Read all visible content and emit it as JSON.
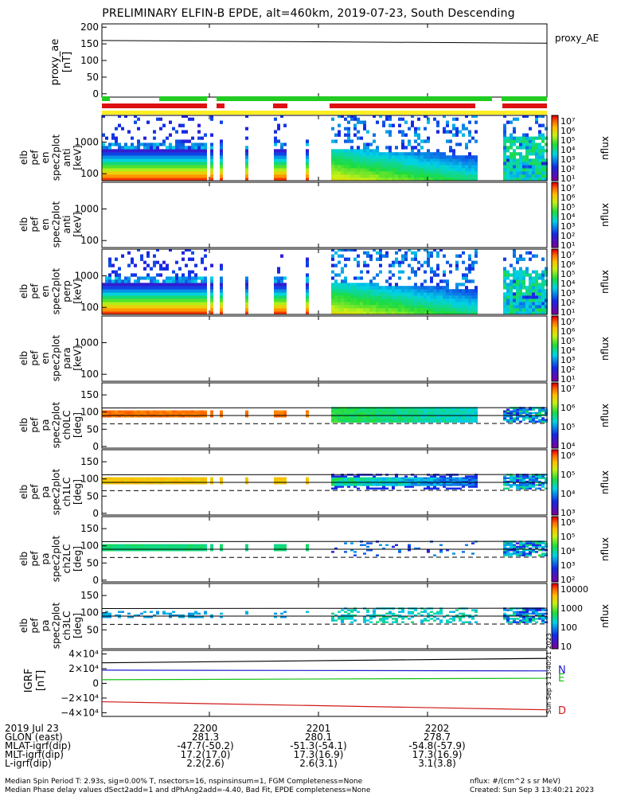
{
  "chart_data": {
    "type": "heatmap",
    "title": "PRELIMINARY ELFIN-B EPDE, alt=460km, 2019-07-23, South Descending",
    "x_tick_labels": [
      "2200",
      "2201",
      "2202"
    ],
    "panels": [
      {
        "id": "proxy_ae",
        "ylabel": [
          "proxy_ae",
          "[nT]"
        ],
        "yticks": [
          "200",
          "150",
          "100",
          "50",
          "0"
        ],
        "ylim": [
          -10,
          210
        ],
        "legend": "proxy_AE",
        "line_start": 160,
        "line_end": 152
      },
      {
        "id": "pef_en_spec2plot_anti",
        "ylabel": [
          "elb",
          "pef",
          "en",
          "spec2plot",
          "anti",
          "[keV]"
        ],
        "yticks": [
          "1000",
          "100"
        ],
        "colorbar": "nflux"
      },
      {
        "id": "pef_en_spec2plot_anti_2",
        "ylabel": [
          "elb",
          "pef",
          "en",
          "spec2plot",
          "anti",
          "[keV]"
        ],
        "yticks": [
          "1000",
          "100"
        ],
        "colorbar": "nflux"
      },
      {
        "id": "pef_en_spec2plot_perp",
        "ylabel": [
          "elb",
          "pef",
          "en",
          "spec2plot",
          "perp",
          "[keV]"
        ],
        "yticks": [
          "1000",
          "100"
        ],
        "colorbar": "nflux"
      },
      {
        "id": "pef_en_spec2plot_para",
        "ylabel": [
          "elb",
          "pef",
          "en",
          "spec2plot",
          "para",
          "[keV]"
        ],
        "yticks": [
          "1000",
          "100"
        ],
        "colorbar": "nflux"
      },
      {
        "id": "pef_pa_spec2plot_ch0LC",
        "ylabel": [
          "elb",
          "pef",
          "pa",
          "spec2plot",
          "ch0LC",
          "[deg]"
        ],
        "yticks": [
          "150",
          "100",
          "50",
          "0"
        ],
        "colorbar": "nflux"
      },
      {
        "id": "pef_pa_spec2plot_ch1LC",
        "ylabel": [
          "elb",
          "pef",
          "pa",
          "spec2plot",
          "ch1LC",
          "[deg]"
        ],
        "yticks": [
          "150",
          "100",
          "50",
          "0"
        ],
        "colorbar": "nflux"
      },
      {
        "id": "pef_pa_spec2plot_ch2LC",
        "ylabel": [
          "elb",
          "pef",
          "pa",
          "spec2plot",
          "ch2LC",
          "[deg]"
        ],
        "yticks": [
          "150",
          "100",
          "50",
          "0"
        ],
        "colorbar": "nflux"
      },
      {
        "id": "pef_pa_spec2plot_ch3LC",
        "ylabel": [
          "elb",
          "pef",
          "pa",
          "spec2plot",
          "ch3LC",
          "[deg]"
        ],
        "yticks": [
          "150",
          "100",
          "50"
        ],
        "colorbar": "nflux"
      },
      {
        "id": "igrf",
        "ylabel": [
          "IGRF",
          "[nT]"
        ],
        "yticks": [
          "4×10⁴",
          "2×10⁴",
          "0",
          "−2×10⁴",
          "−4×10⁴"
        ],
        "ylim": [
          -45000,
          45000
        ],
        "series": [
          {
            "name": "",
            "color": "#000000",
            "start": 28000,
            "end": 34000
          },
          {
            "name": "N",
            "color": "#1a1acc",
            "start": 18000,
            "end": 17000
          },
          {
            "name": "E",
            "color": "#10c010",
            "start": 5000,
            "end": 7000
          },
          {
            "name": "D",
            "color": "#d01818",
            "start": -25000,
            "end": -36000
          }
        ]
      }
    ],
    "colorbars": [
      {
        "labels": [
          "10⁷",
          "10⁶",
          "10⁵",
          "10⁴",
          "10³",
          "10²",
          "10¹"
        ],
        "unit": "nflux"
      },
      {
        "labels": [
          "10⁷",
          "10⁶",
          "10⁵",
          "10⁴",
          "10³",
          "10²",
          "10¹"
        ],
        "unit": "nflux"
      },
      {
        "labels": [
          "10⁷",
          "10⁶",
          "10⁵",
          "10⁴",
          "10³",
          "10²",
          "10¹"
        ],
        "unit": "nflux"
      },
      {
        "labels": [
          "10⁷",
          "10⁶",
          "10⁵",
          "10⁴",
          "10³",
          "10²",
          "10¹"
        ],
        "unit": "nflux"
      },
      {
        "labels": [
          "10⁷",
          "10⁶",
          "10⁵",
          "10⁴"
        ],
        "unit": "nflux"
      },
      {
        "labels": [
          "10⁶",
          "10⁵",
          "10⁴",
          "10³"
        ],
        "unit": "nflux"
      },
      {
        "labels": [
          "10⁶",
          "10⁵",
          "10⁴",
          "10³",
          "10²"
        ],
        "unit": "nflux"
      },
      {
        "labels": [
          "10000",
          "1000",
          "100",
          "10"
        ],
        "unit": "nflux"
      }
    ],
    "side_stamp": "Sun Sep  3 13:40:21 2023"
  },
  "ephemeris": {
    "row_labels": [
      "2019 Jul 23",
      "GLON (east)",
      "MLAT-igrf(dip)",
      "MLT-igrf(dip)",
      "L-igrf(dip)"
    ],
    "columns": [
      {
        "time": "2200",
        "glon": "281.3",
        "mlat": "-47.7(-50.2)",
        "mlt": "17.2(17.0)",
        "l": "2.2(2.6)"
      },
      {
        "time": "2201",
        "glon": "280.1",
        "mlat": "-51.3(-54.1)",
        "mlt": "17.3(16.9)",
        "l": "2.6(3.1)"
      },
      {
        "time": "2202",
        "glon": "278.7",
        "mlat": "-54.8(-57.9)",
        "mlt": "17.3(16.9)",
        "l": "3.1(3.8)"
      }
    ]
  },
  "footer": {
    "line1": "Median Spin Period T: 2.93s, sig=0.00% T, nsectors=16, nspinsinsum=1, FGM Completeness=None",
    "line2": "Median Phase delay values dSect2add=1 and dPhAng2add=-4.40, Bad Fit, EPDE completeness=None",
    "units": "nflux: #/(cm^2 s sr MeV)",
    "created": "Created: Sun Sep  3 13:40:21 2023"
  },
  "colors": {
    "green_bar": "#22cc22",
    "red_bar": "#dd1111",
    "yellow_bar": "#ffee22"
  }
}
